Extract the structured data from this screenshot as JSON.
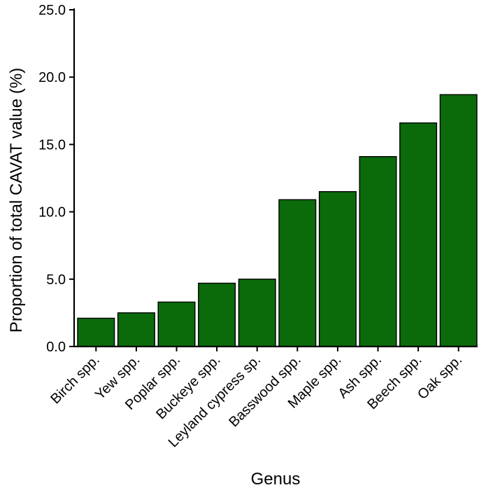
{
  "chart_data": {
    "type": "bar",
    "title": "",
    "xlabel": "Genus",
    "ylabel": "Proportion of total CAVAT value (%)",
    "categories": [
      "Birch spp.",
      "Yew spp.",
      "Poplar spp.",
      "Buckeye spp.",
      "Leyland cypress sp.",
      "Basswood spp.",
      "Maple spp.",
      "Ash spp.",
      "Beech spp.",
      "Oak spp."
    ],
    "values": [
      2.1,
      2.5,
      3.3,
      4.7,
      5.0,
      10.9,
      11.5,
      14.1,
      16.6,
      18.7
    ],
    "ylim": [
      0,
      25
    ],
    "yticks": [
      0,
      5,
      10,
      15,
      20,
      25
    ],
    "ytick_labels": [
      "0.0",
      "5.0",
      "10.0",
      "15.0",
      "20.0",
      "25.0"
    ],
    "bar_color": "#0b6b0b",
    "bar_edge_color": "#000000",
    "grid": false,
    "legend": "none"
  }
}
